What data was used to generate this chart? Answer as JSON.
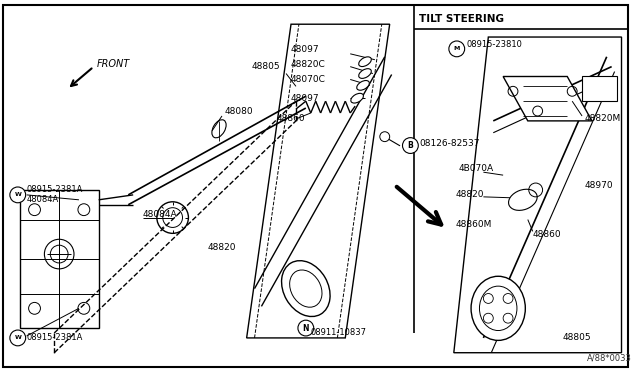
{
  "bg_color": "#ffffff",
  "line_color": "#000000",
  "fig_width": 6.4,
  "fig_height": 3.72,
  "dpi": 100,
  "watermark": "A/88*0033",
  "tilt_label": "TILT STEERING",
  "front_label": "FRONT"
}
